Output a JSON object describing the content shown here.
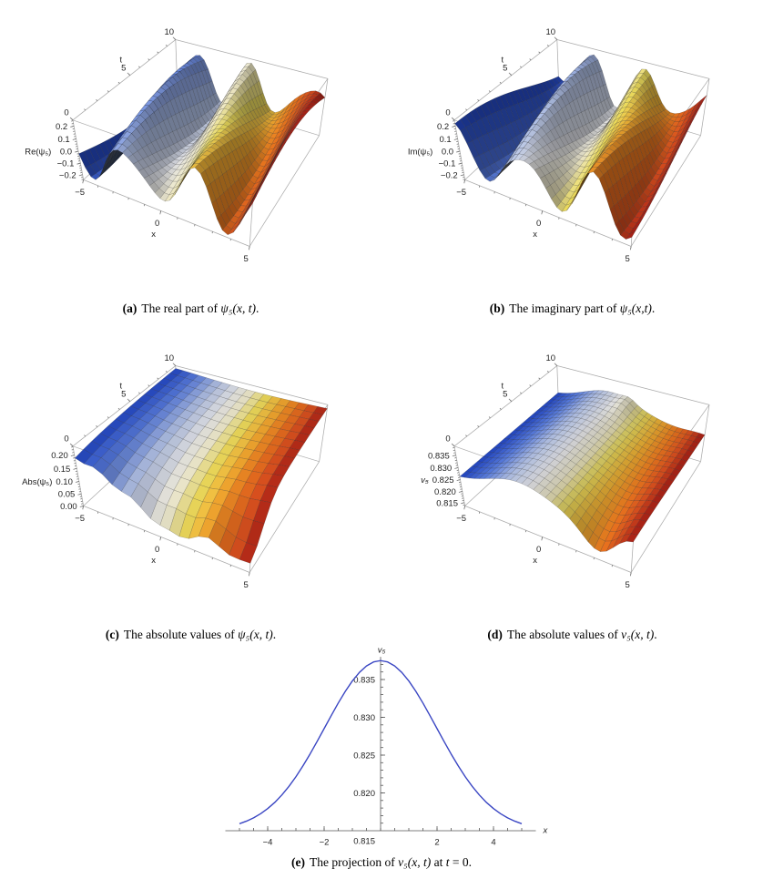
{
  "style": {
    "surface_colormap": [
      [
        0.0,
        "#2146c7"
      ],
      [
        0.16,
        "#5b7fe3"
      ],
      [
        0.3,
        "#aebfe8"
      ],
      [
        0.44,
        "#e9eaee"
      ],
      [
        0.54,
        "#f2eccb"
      ],
      [
        0.63,
        "#efdf5f"
      ],
      [
        0.73,
        "#f3b133"
      ],
      [
        0.83,
        "#ec7a1f"
      ],
      [
        0.92,
        "#d94f1f"
      ],
      [
        1.0,
        "#a81b16"
      ]
    ],
    "box_edge_color": "#ababab",
    "mesh_line_color": "rgba(25,25,25,0.4)",
    "label_color": "#222222",
    "axis_color": "#555555",
    "background": "#ffffff"
  },
  "captions": {
    "a": {
      "label": "(a)",
      "pre": "The real part of ",
      "math": "ψ₅(x, t)",
      "post": "."
    },
    "b": {
      "label": "(b)",
      "pre": "The imaginary part of ",
      "math": "ψ₅(x,t)",
      "post": "."
    },
    "c": {
      "label": "(c)",
      "pre": "The absolute values of ",
      "math": "ψ₅(x, t)",
      "post": "."
    },
    "d": {
      "label": "(d)",
      "pre": "The absolute values of ",
      "math": "v₅(x, t)",
      "post": "."
    },
    "e": {
      "label": "(e)",
      "pre": "The projection of ",
      "math": "v₅(x, t)",
      "mid": " at ",
      "math2": "t",
      "post": " = 0."
    }
  },
  "chart_data": [
    {
      "id": "a",
      "type": "surface",
      "axis_labels": {
        "z": "Re(ψ₅)",
        "x": "x",
        "t": "t",
        "z_italic": false
      },
      "x_range": [
        -5,
        5
      ],
      "t_range": [
        0,
        10
      ],
      "z_range": [
        -0.245,
        0.245
      ],
      "x_ticks": {
        "values": [
          -5,
          0,
          5
        ],
        "labels": [
          "−5",
          "0",
          "5"
        ]
      },
      "t_ticks": {
        "values": [
          0,
          5,
          10
        ],
        "labels": [
          "0",
          "5",
          "10"
        ]
      },
      "z_ticks": {
        "values": [
          -0.2,
          -0.1,
          0,
          0.1,
          0.2
        ],
        "labels": [
          "−0.2",
          "−0.1",
          "0.0",
          "0.1",
          "0.2"
        ]
      },
      "grid": {
        "nx": 34,
        "nt": 24
      },
      "z_expr": "0.17*Math.cos(1.6*x+0.25*t+3.26)+0.055*Math.cos(2.3*x-0.1*t+1.0)"
    },
    {
      "id": "b",
      "type": "surface",
      "axis_labels": {
        "z": "Im(ψ₅)",
        "x": "x",
        "t": "t",
        "z_italic": false
      },
      "x_range": [
        -5,
        5
      ],
      "t_range": [
        0,
        10
      ],
      "z_range": [
        -0.245,
        0.245
      ],
      "x_ticks": {
        "values": [
          -5,
          0,
          5
        ],
        "labels": [
          "−5",
          "0",
          "5"
        ]
      },
      "t_ticks": {
        "values": [
          0,
          5,
          10
        ],
        "labels": [
          "0",
          "5",
          "10"
        ]
      },
      "z_ticks": {
        "values": [
          -0.2,
          -0.1,
          0,
          0.1,
          0.2
        ],
        "labels": [
          "−0.2",
          "−0.1",
          "0.0",
          "0.1",
          "0.2"
        ]
      },
      "grid": {
        "nx": 34,
        "nt": 24
      },
      "z_expr": "0.17*Math.sin(1.6*x+0.25*t+3.26)+0.055*Math.sin(2.3*x-0.1*t+1.0)"
    },
    {
      "id": "c",
      "type": "surface",
      "axis_labels": {
        "z": "Abs(ψ₅)",
        "x": "x",
        "t": "t",
        "z_italic": false
      },
      "x_range": [
        -5,
        5
      ],
      "t_range": [
        0,
        10
      ],
      "z_range": [
        0,
        0.232
      ],
      "x_ticks": {
        "values": [
          -5,
          0,
          5
        ],
        "labels": [
          "−5",
          "0",
          "5"
        ]
      },
      "t_ticks": {
        "values": [
          0,
          5,
          10
        ],
        "labels": [
          "0",
          "5",
          "10"
        ]
      },
      "z_ticks": {
        "values": [
          0,
          0.05,
          0.1,
          0.15,
          0.2
        ],
        "labels": [
          "0.00",
          "0.05",
          "0.10",
          "0.15",
          "0.20"
        ]
      },
      "grid": {
        "nx": 18,
        "nt": 14
      },
      "z_expr": "0.225*Math.sqrt(Math.max(0,1-Math.exp(-(0.2*t+0.04*Math.pow(x-0.8,2)+0.02))))-0.13*Math.exp(-(Math.pow(x-5,2)/3+t*t/3))+0.008*Math.sin(3*x)*Math.exp(-t/2)"
    },
    {
      "id": "d",
      "type": "surface",
      "axis_labels": {
        "z": "v₅",
        "x": "x",
        "t": "t",
        "z_italic": true
      },
      "x_range": [
        -5,
        5
      ],
      "t_range": [
        0,
        10
      ],
      "z_range": [
        0.8135,
        0.8385
      ],
      "x_ticks": {
        "values": [
          -5,
          0,
          5
        ],
        "labels": [
          "−5",
          "0",
          "5"
        ]
      },
      "t_ticks": {
        "values": [
          0,
          5,
          10
        ],
        "labels": [
          "0",
          "5",
          "10"
        ]
      },
      "z_ticks": {
        "values": [
          0.815,
          0.82,
          0.825,
          0.83,
          0.835
        ],
        "labels": [
          "0.815",
          "0.820",
          "0.825",
          "0.830",
          "0.835"
        ]
      },
      "grid": {
        "nx": 30,
        "nt": 20
      },
      "z_expr": "0.8253+0.0078*Math.exp(-Math.pow(x+1.2,2)/7)-0.0095*Math.exp(-Math.pow(x-3.4,2)/1.8-t/2.5)+0.0042*Math.exp(-Math.pow(x-4.5,2)/0.9-t/5)+0.002*Math.exp(-Math.pow(x-0.1,2)/0.3-Math.pow(t-9.3,2)/1.5)"
    },
    {
      "id": "e",
      "type": "line",
      "axis_labels": {
        "y": "v₅",
        "x": "x"
      },
      "x_axis_range": [
        -5.5,
        5.5
      ],
      "y_origin": 0.815,
      "y_top": 0.838,
      "x_ticks": {
        "values": [
          -4,
          -2,
          2,
          4
        ],
        "labels": [
          "−4",
          "−2",
          "2",
          "4"
        ]
      },
      "y_ticks": {
        "values": [
          0.82,
          0.825,
          0.83,
          0.835
        ],
        "labels": [
          "0.820",
          "0.825",
          "0.830",
          "0.835"
        ]
      },
      "origin_label": "0.815",
      "color": "#3a46c3",
      "points": {
        "x": [
          -5,
          -4.75,
          -4.5,
          -4.25,
          -4,
          -3.75,
          -3.5,
          -3.25,
          -3,
          -2.75,
          -2.5,
          -2.25,
          -2,
          -1.75,
          -1.5,
          -1.25,
          -1,
          -0.75,
          -0.5,
          -0.25,
          0,
          0.25,
          0.5,
          0.75,
          1,
          1.25,
          1.5,
          1.75,
          2,
          2.25,
          2.5,
          2.75,
          3,
          3.25,
          3.5,
          3.75,
          4,
          4.25,
          4.5,
          4.75,
          5
        ],
        "y": [
          0.81593,
          0.81627,
          0.8167,
          0.81725,
          0.81793,
          0.81874,
          0.81972,
          0.82085,
          0.82214,
          0.82358,
          0.82514,
          0.8268,
          0.82851,
          0.83022,
          0.83189,
          0.83343,
          0.83481,
          0.83594,
          0.83679,
          0.83732,
          0.8375,
          0.83732,
          0.83679,
          0.83594,
          0.83481,
          0.83343,
          0.83189,
          0.83022,
          0.82851,
          0.8268,
          0.82514,
          0.82358,
          0.82214,
          0.82085,
          0.81972,
          0.81874,
          0.81793,
          0.81725,
          0.8167,
          0.81627,
          0.81593
        ]
      }
    }
  ]
}
